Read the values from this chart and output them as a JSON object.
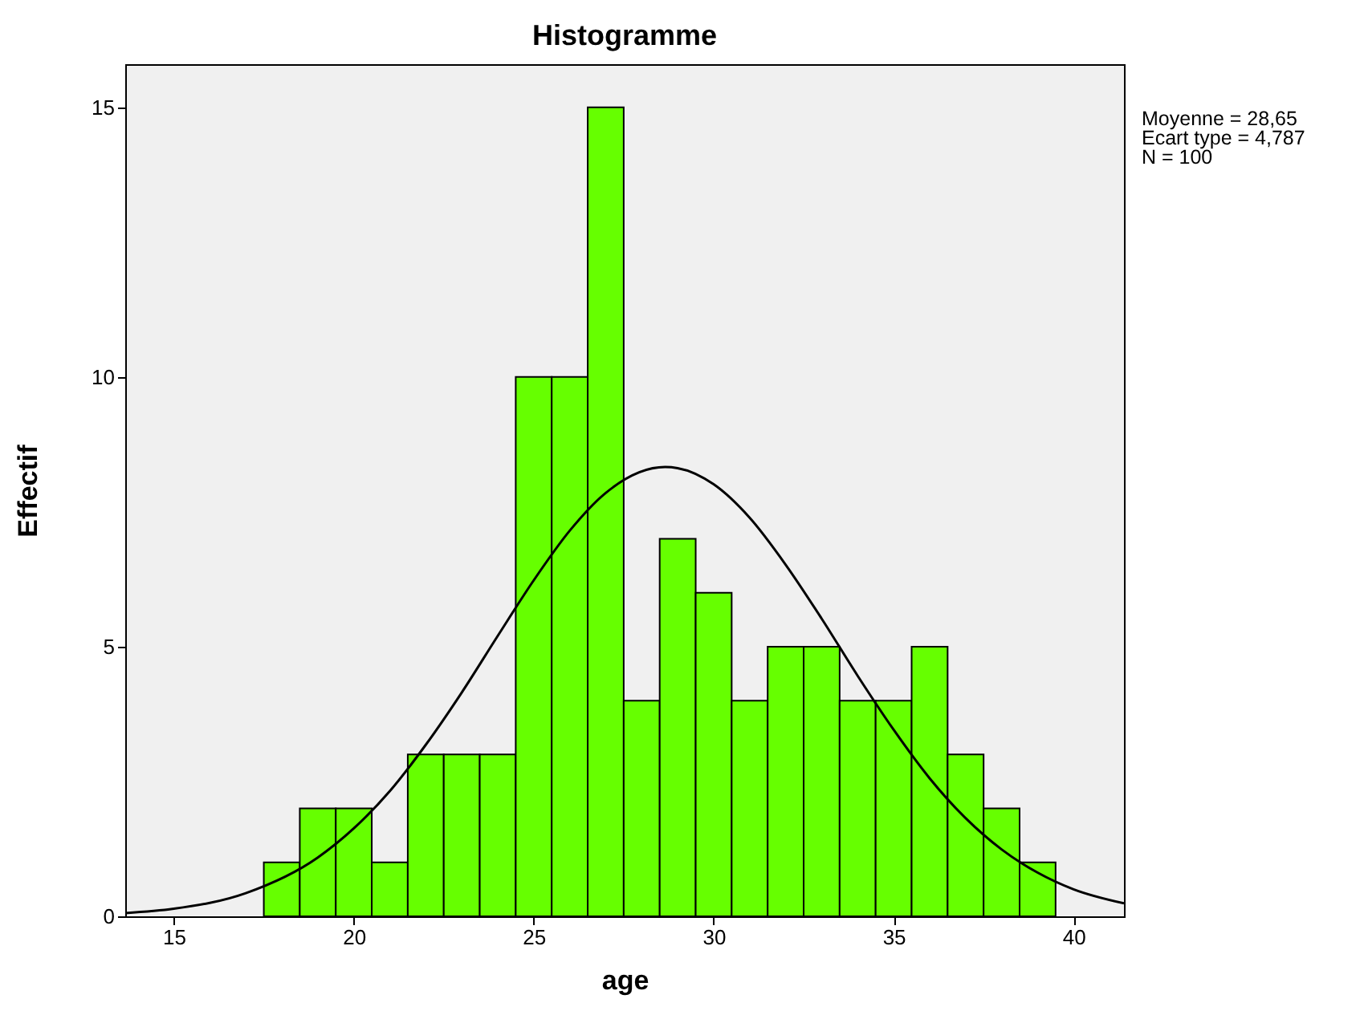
{
  "chart_data": {
    "type": "histogram",
    "title": "Histogramme",
    "xlabel": "age",
    "ylabel": "Effectif",
    "bins": [
      17.5,
      18.5,
      19.5,
      20.5,
      21.5,
      22.5,
      23.5,
      24.5,
      25.5,
      26.5,
      27.5,
      28.5,
      29.5,
      30.5,
      31.5,
      32.5,
      33.5,
      34.5,
      35.5,
      36.5,
      37.5,
      38.5,
      39.5
    ],
    "series": [
      {
        "color": "#66ff00",
        "values": [
          1,
          2,
          2,
          1,
          3,
          3,
          3,
          10,
          10,
          15,
          4,
          7,
          6,
          4,
          5,
          5,
          4,
          4,
          5,
          3,
          2,
          1
        ]
      },
      {
        "type": "line",
        "color": "#000000",
        "x": [
          13.65,
          15,
          17,
          19,
          20,
          21,
          22,
          23,
          24,
          25,
          26,
          27,
          28.65,
          29,
          30,
          31,
          32,
          33,
          34,
          35,
          36,
          37,
          38,
          39,
          40,
          41.4
        ],
        "values": [
          0.06,
          0.14,
          0.43,
          1.09,
          1.63,
          2.32,
          3.18,
          4.15,
          5.2,
          6.23,
          7.15,
          7.85,
          8.33,
          8.31,
          8.01,
          7.39,
          6.52,
          5.52,
          4.46,
          3.46,
          2.56,
          1.82,
          1.24,
          0.81,
          0.5,
          0.24
        ]
      }
    ],
    "xlim": [
      13.65,
      41.4
    ],
    "xticks": [
      15,
      20,
      25,
      30,
      35,
      40
    ],
    "ylim": [
      0,
      15.8
    ],
    "yticks": [
      0,
      5,
      10,
      15
    ],
    "annotations": [
      "Moyenne = 28,65",
      "Ecart type = 4,787",
      "N = 100"
    ]
  }
}
